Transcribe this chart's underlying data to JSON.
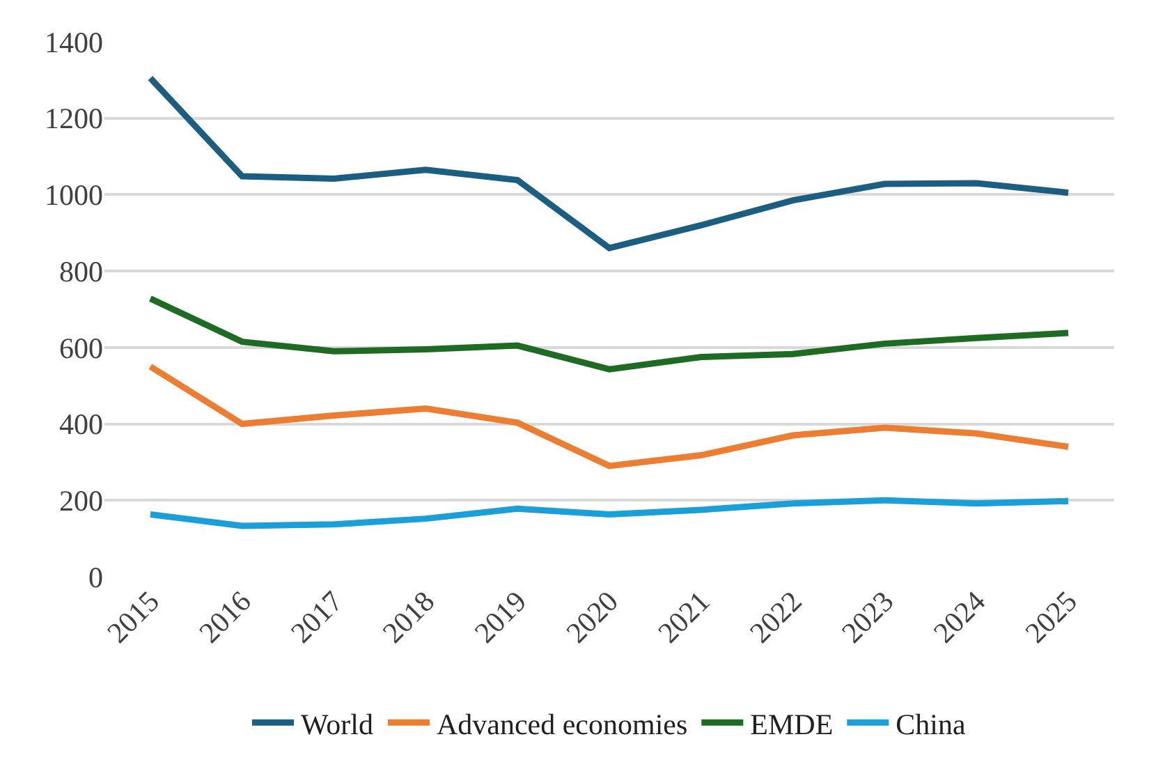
{
  "chart_data": {
    "type": "line",
    "categories": [
      "2015",
      "2016",
      "2017",
      "2018",
      "2019",
      "2020",
      "2021",
      "2022",
      "2023",
      "2024",
      "2025"
    ],
    "series": [
      {
        "name": "World",
        "color": "#1b5e82",
        "values": [
          1305,
          1048,
          1042,
          1065,
          1038,
          860,
          920,
          985,
          1028,
          1030,
          1005
        ]
      },
      {
        "name": "Advanced economies",
        "color": "#ed7d31",
        "values": [
          550,
          400,
          422,
          440,
          403,
          290,
          318,
          370,
          390,
          375,
          340
        ]
      },
      {
        "name": "EMDE",
        "color": "#1e6b23",
        "values": [
          728,
          615,
          590,
          595,
          605,
          543,
          575,
          583,
          610,
          625,
          638
        ]
      },
      {
        "name": "China",
        "color": "#1a9fd9",
        "values": [
          163,
          133,
          137,
          152,
          178,
          163,
          175,
          192,
          200,
          192,
          198
        ]
      }
    ],
    "ylim": [
      0,
      1400
    ],
    "yticks": [
      0,
      200,
      400,
      600,
      800,
      1000,
      1200,
      1400
    ],
    "grid": "y",
    "legend": "bottom",
    "marker": "none",
    "line_style": "solid"
  }
}
